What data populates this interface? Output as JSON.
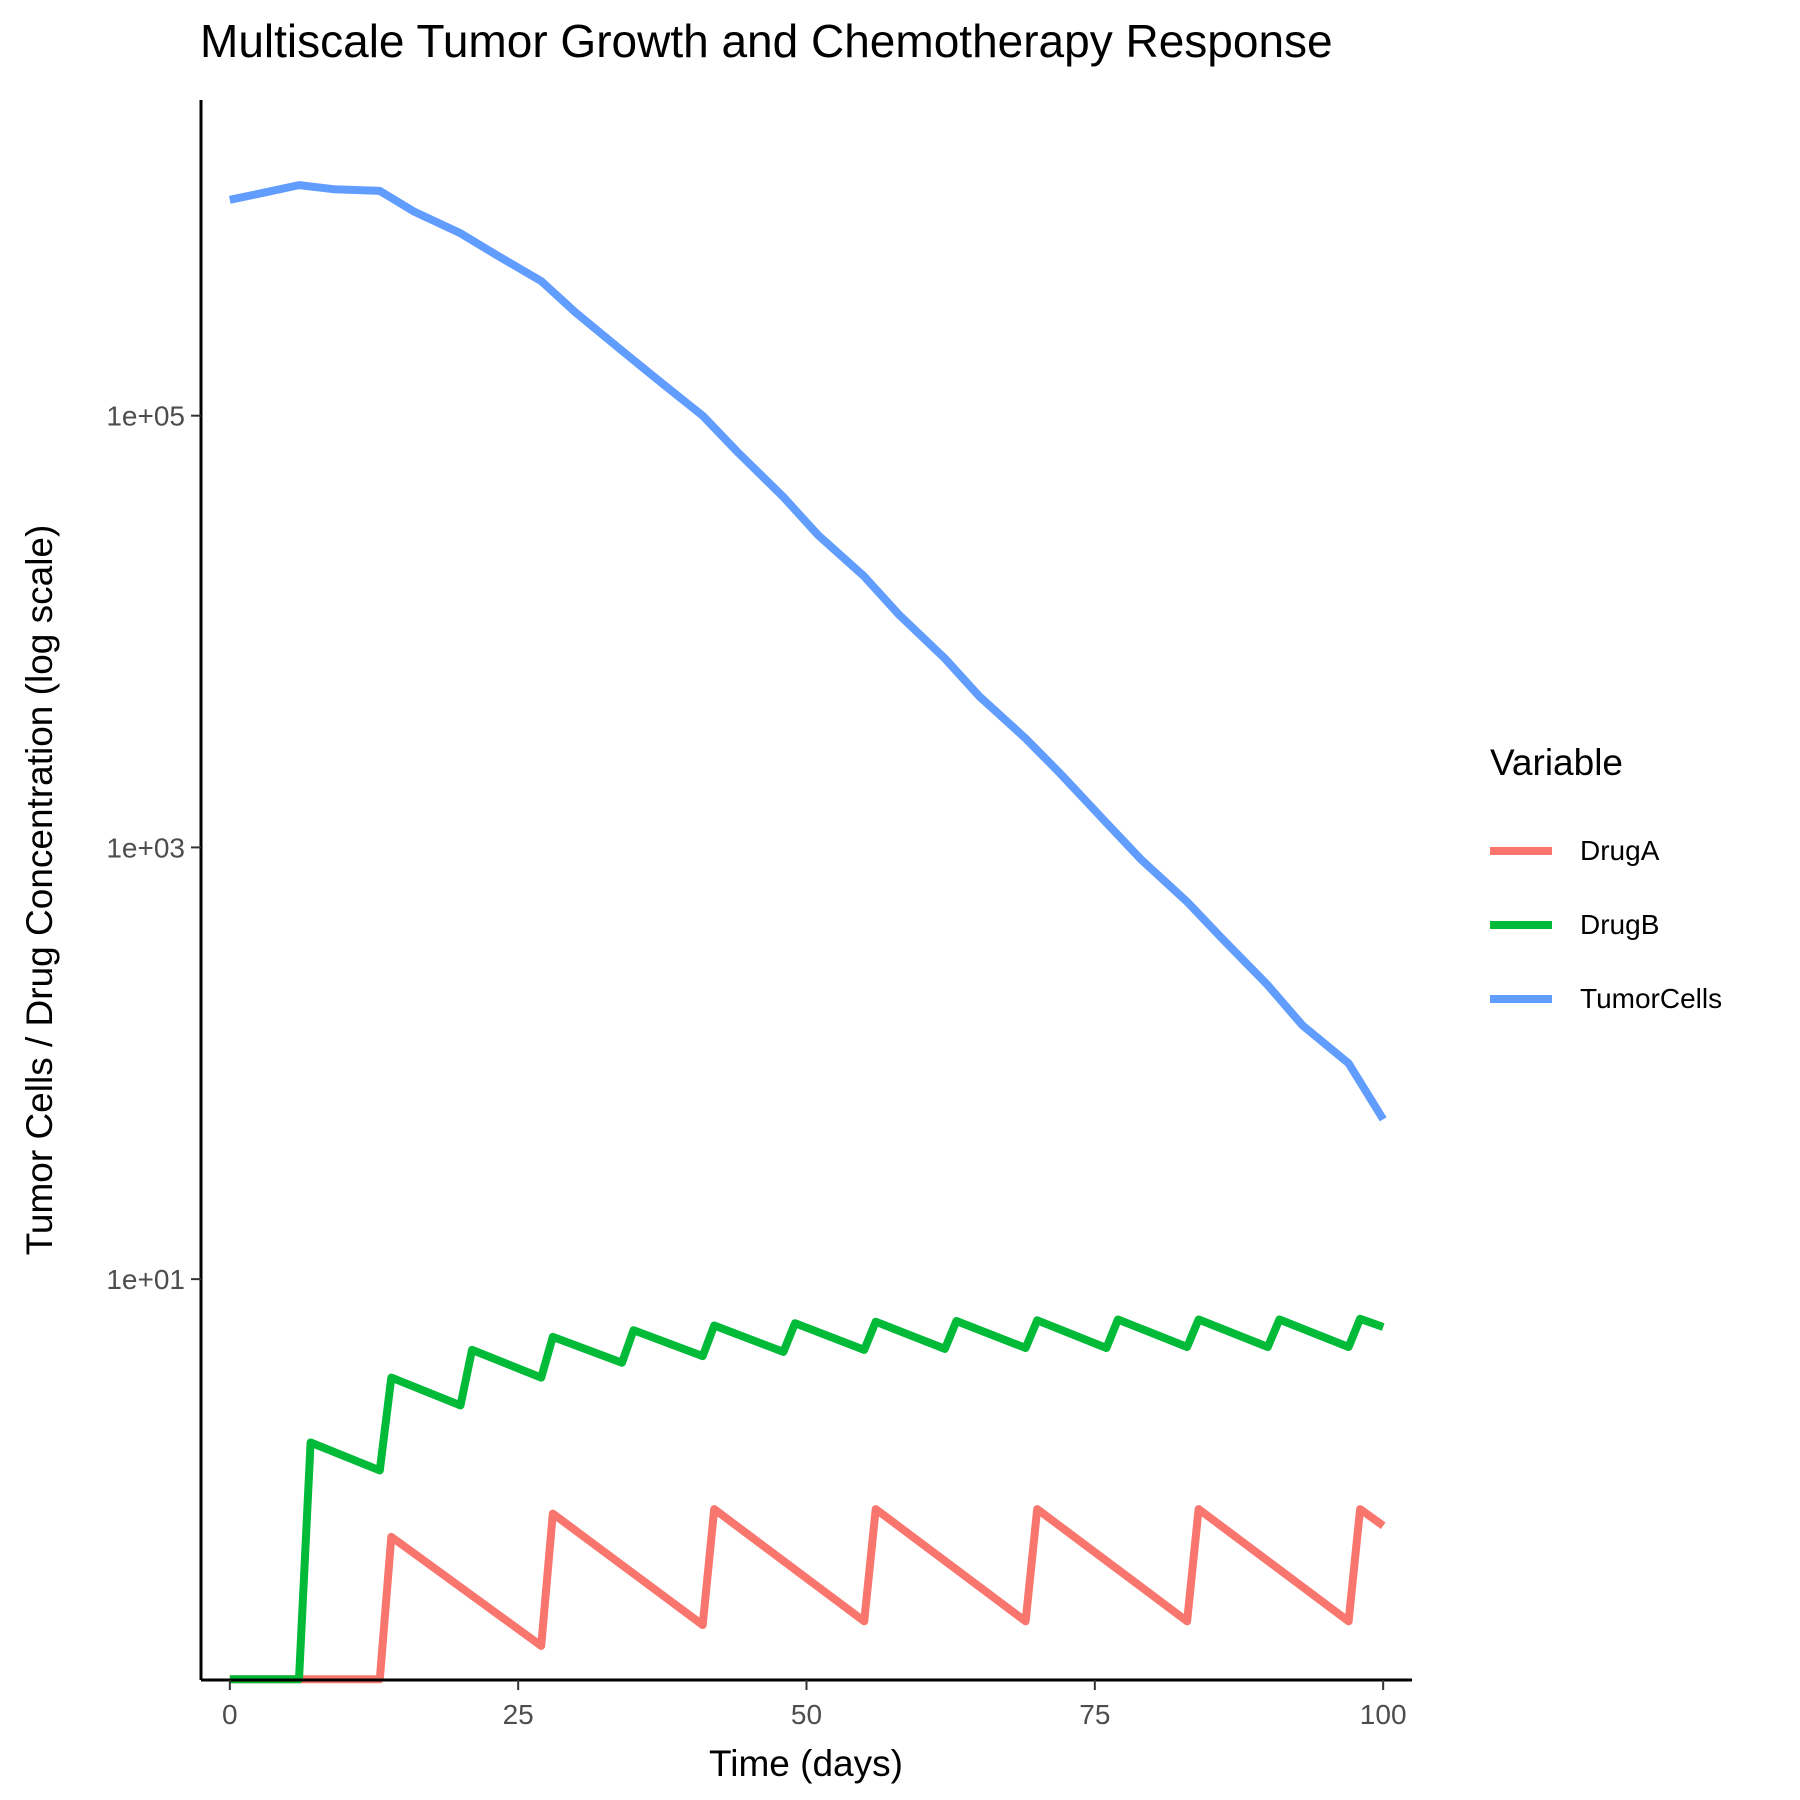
{
  "chart_data": {
    "type": "line",
    "title": "Multiscale Tumor Growth and Chemotherapy Response",
    "xlabel": "Time (days)",
    "ylabel": "Tumor Cells / Drug Concentration (log scale)",
    "x_scale": "linear",
    "y_scale": "log10",
    "xlim": [
      -2.5,
      102.5
    ],
    "ylim": [
      0.139,
      2900000
    ],
    "x_ticks": [
      0,
      25,
      50,
      75,
      100
    ],
    "x_tick_labels": [
      "0",
      "25",
      "50",
      "75",
      "100"
    ],
    "y_ticks": [
      10,
      1000,
      100000
    ],
    "y_tick_labels": [
      "1e+01",
      "1e+03",
      "1e+05"
    ],
    "grid": false,
    "legend": {
      "title": "Variable",
      "position": "right"
    },
    "series": [
      {
        "name": "DrugA",
        "color": "#F8766D",
        "points": [
          [
            0,
            0.14
          ],
          [
            13,
            0.14
          ],
          [
            14,
            0.64
          ],
          [
            27,
            0.2
          ],
          [
            28,
            0.82
          ],
          [
            41,
            0.25
          ],
          [
            42,
            0.86
          ],
          [
            55,
            0.26
          ],
          [
            56,
            0.86
          ],
          [
            69,
            0.26
          ],
          [
            70,
            0.86
          ],
          [
            83,
            0.26
          ],
          [
            84,
            0.86
          ],
          [
            97,
            0.26
          ],
          [
            98,
            0.86
          ],
          [
            100,
            0.72
          ]
        ]
      },
      {
        "name": "DrugB",
        "color": "#00BA38",
        "points": [
          [
            0,
            0.14
          ],
          [
            6,
            0.14
          ],
          [
            7,
            1.75
          ],
          [
            13,
            1.3
          ],
          [
            14,
            3.5
          ],
          [
            20,
            2.6
          ],
          [
            21,
            4.7
          ],
          [
            27,
            3.5
          ],
          [
            28,
            5.4
          ],
          [
            34,
            4.1
          ],
          [
            35,
            5.8
          ],
          [
            41,
            4.4
          ],
          [
            42,
            6.1
          ],
          [
            48,
            4.6
          ],
          [
            49,
            6.25
          ],
          [
            55,
            4.7
          ],
          [
            56,
            6.35
          ],
          [
            62,
            4.75
          ],
          [
            63,
            6.4
          ],
          [
            69,
            4.8
          ],
          [
            70,
            6.45
          ],
          [
            76,
            4.8
          ],
          [
            77,
            6.5
          ],
          [
            83,
            4.85
          ],
          [
            84,
            6.5
          ],
          [
            90,
            4.85
          ],
          [
            91,
            6.5
          ],
          [
            97,
            4.85
          ],
          [
            98,
            6.55
          ],
          [
            100,
            6.0
          ]
        ]
      },
      {
        "name": "TumorCells",
        "color": "#619CFF",
        "points": [
          [
            0,
            1000000
          ],
          [
            3,
            1080000
          ],
          [
            6,
            1170000
          ],
          [
            9,
            1120000
          ],
          [
            13,
            1100000
          ],
          [
            16,
            880000
          ],
          [
            20,
            700000
          ],
          [
            23,
            560000
          ],
          [
            27,
            420000
          ],
          [
            30,
            300000
          ],
          [
            34,
            200000
          ],
          [
            37,
            148000
          ],
          [
            41,
            100000
          ],
          [
            44,
            68000
          ],
          [
            48,
            42000
          ],
          [
            51,
            28000
          ],
          [
            55,
            18000
          ],
          [
            58,
            12000
          ],
          [
            62,
            7500
          ],
          [
            65,
            5000
          ],
          [
            69,
            3200
          ],
          [
            72,
            2200
          ],
          [
            76,
            1300
          ],
          [
            79,
            880
          ],
          [
            83,
            560
          ],
          [
            86,
            380
          ],
          [
            90,
            230
          ],
          [
            93,
            150
          ],
          [
            97,
            100
          ],
          [
            100,
            55
          ]
        ]
      }
    ]
  }
}
